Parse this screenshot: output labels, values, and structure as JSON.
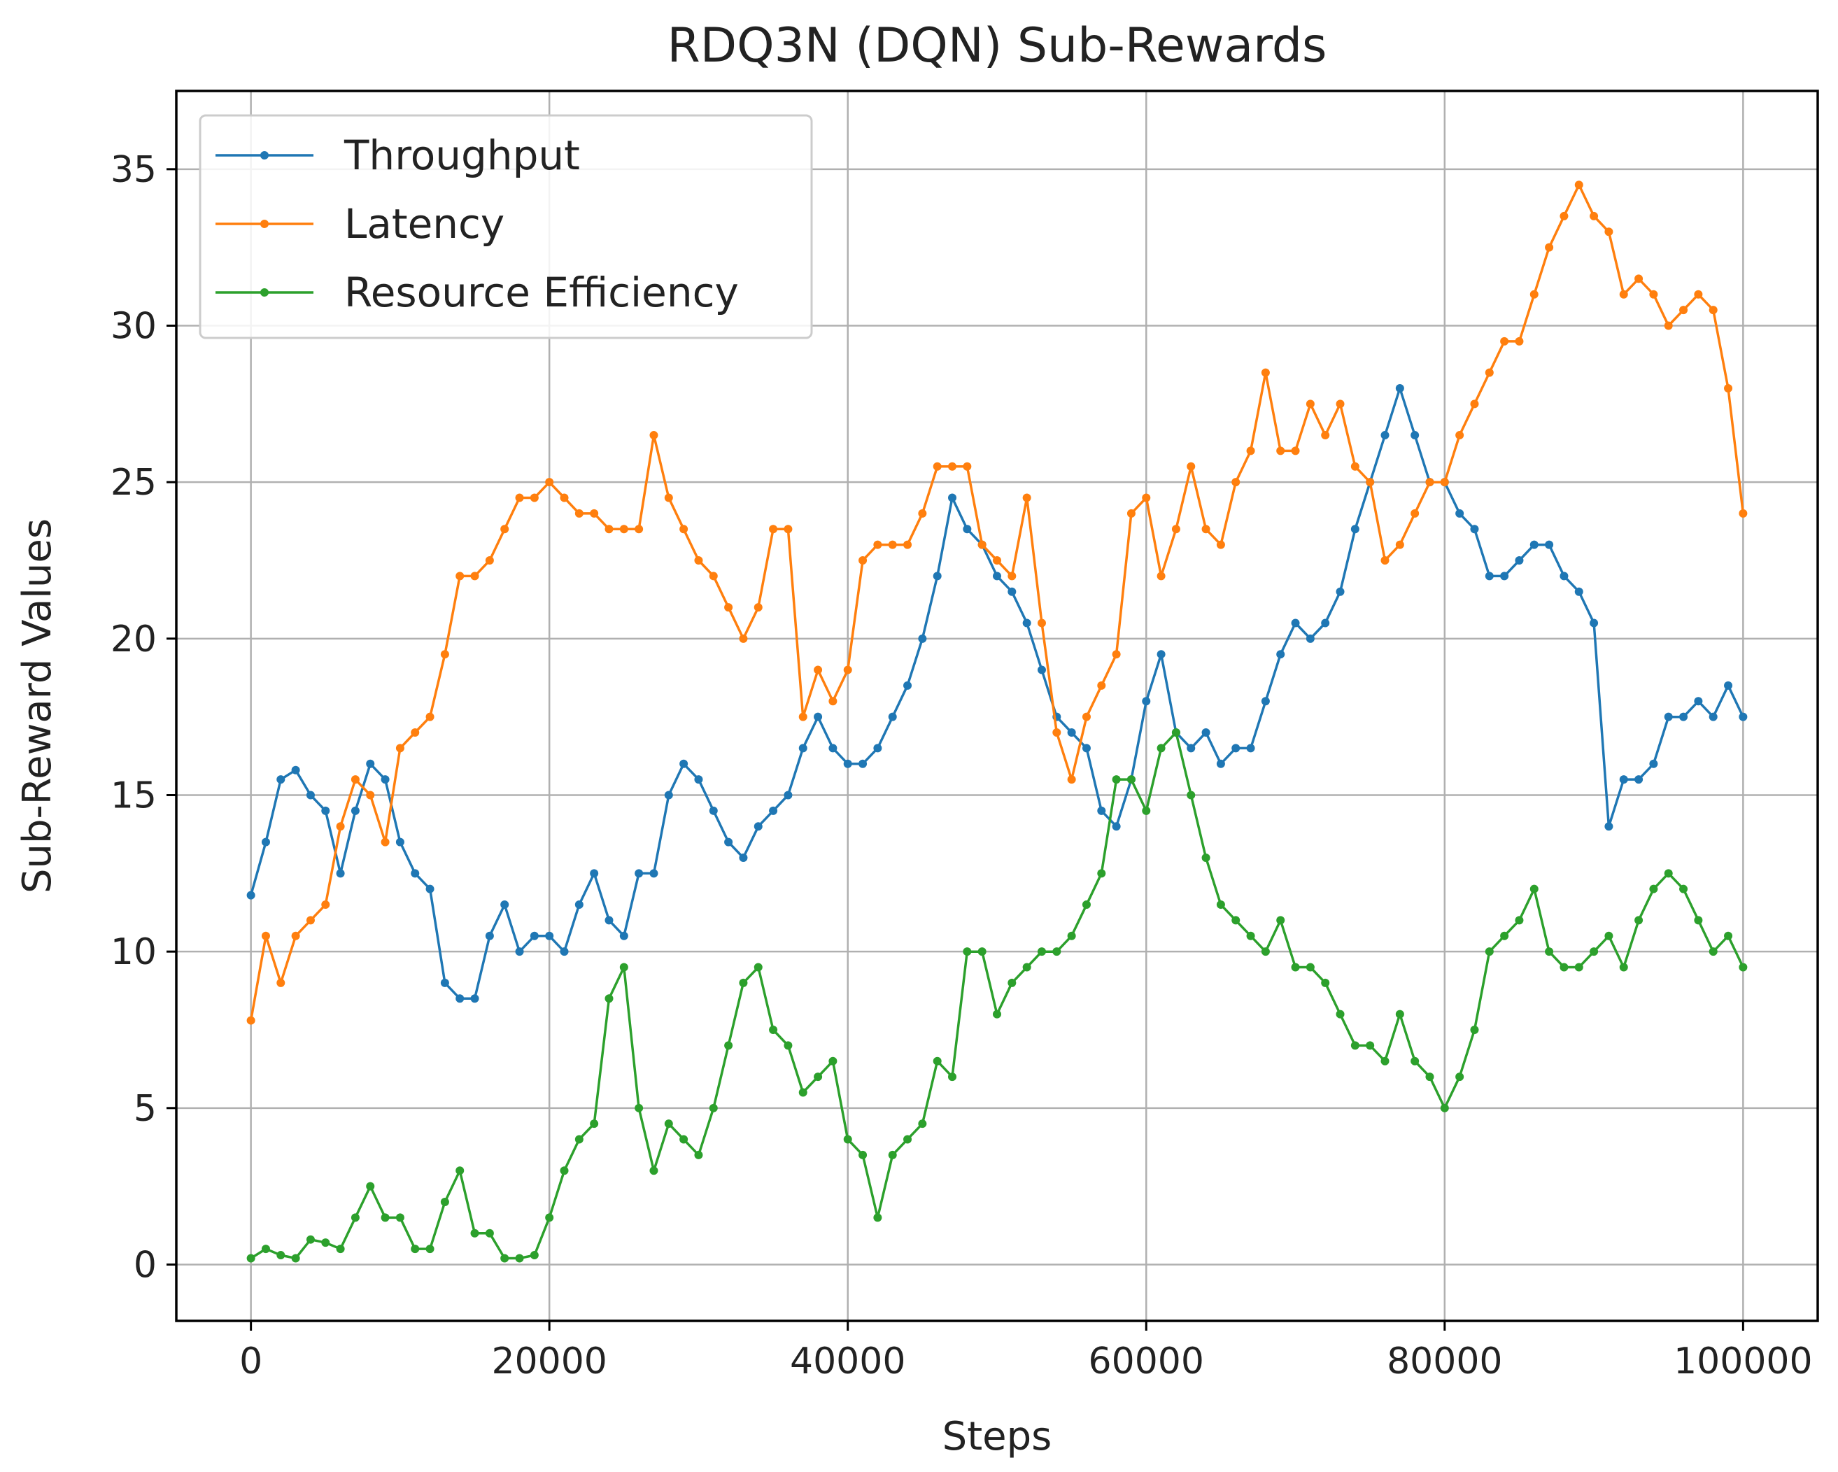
{
  "chart_data": {
    "type": "line",
    "title": "RDQ3N (DQN) Sub-Rewards",
    "xlabel": "Steps",
    "ylabel": "Sub-Reward Values",
    "xlim": [
      -5000,
      105000
    ],
    "ylim": [
      -1.8,
      37.5
    ],
    "xticks": [
      0,
      20000,
      40000,
      60000,
      80000,
      100000
    ],
    "xtick_labels": [
      "0",
      "20000",
      "40000",
      "60000",
      "80000",
      "100000"
    ],
    "yticks": [
      0,
      5,
      10,
      15,
      20,
      25,
      30,
      35
    ],
    "ytick_labels": [
      "0",
      "5",
      "10",
      "15",
      "20",
      "25",
      "30",
      "35"
    ],
    "grid": true,
    "legend_position": "top-left",
    "series": [
      {
        "name": "Throughput",
        "color": "#1f77b4",
        "x": [
          0,
          1000,
          2000,
          3000,
          4000,
          5000,
          6000,
          7000,
          8000,
          9000,
          10000,
          11000,
          12000,
          13000,
          14000,
          15000,
          16000,
          17000,
          18000,
          19000,
          20000,
          21000,
          22000,
          23000,
          24000,
          25000,
          26000,
          27000,
          28000,
          29000,
          30000,
          31000,
          32000,
          33000,
          34000,
          35000,
          36000,
          37000,
          38000,
          39000,
          40000,
          41000,
          42000,
          43000,
          44000,
          45000,
          46000,
          47000,
          48000,
          49000,
          50000,
          51000,
          52000,
          53000,
          54000,
          55000,
          56000,
          57000,
          58000,
          59000,
          60000,
          61000,
          62000,
          63000,
          64000,
          65000,
          66000,
          67000,
          68000,
          69000,
          70000,
          71000,
          72000,
          73000,
          74000,
          75000,
          76000,
          77000,
          78000,
          79000,
          80000,
          81000,
          82000,
          83000,
          84000,
          85000,
          86000,
          87000,
          88000,
          89000,
          90000,
          91000,
          92000,
          93000,
          94000,
          95000,
          96000,
          97000,
          98000,
          99000,
          100000
        ],
        "values": [
          11.8,
          13.5,
          15.5,
          15.8,
          15.0,
          14.5,
          12.5,
          14.5,
          16.0,
          15.5,
          13.5,
          12.5,
          12.0,
          9.0,
          8.5,
          8.5,
          10.5,
          11.5,
          10.0,
          10.5,
          10.5,
          10.0,
          11.5,
          12.5,
          11.0,
          10.5,
          12.5,
          12.5,
          15.0,
          16.0,
          15.5,
          14.5,
          13.5,
          13.0,
          14.0,
          14.5,
          15.0,
          16.5,
          17.5,
          16.5,
          16.0,
          16.0,
          16.5,
          17.5,
          18.5,
          20.0,
          22.0,
          24.5,
          23.5,
          23.0,
          22.0,
          21.5,
          20.5,
          19.0,
          17.5,
          17.0,
          16.5,
          14.5,
          14.0,
          15.5,
          18.0,
          19.5,
          17.0,
          16.5,
          17.0,
          16.0,
          16.5,
          16.5,
          18.0,
          19.5,
          20.5,
          20.0,
          20.5,
          21.5,
          23.5,
          25.0,
          26.5,
          28.0,
          26.5,
          25.0,
          25.0,
          24.0,
          23.5,
          22.0,
          22.0,
          22.5,
          23.0,
          23.0,
          22.0,
          21.5,
          20.5,
          14.0,
          15.5,
          15.5,
          16.0,
          17.5,
          17.5,
          18.0,
          17.5,
          18.5,
          17.5
        ]
      },
      {
        "name": "Latency",
        "color": "#ff7f0e",
        "x": [
          0,
          1000,
          2000,
          3000,
          4000,
          5000,
          6000,
          7000,
          8000,
          9000,
          10000,
          11000,
          12000,
          13000,
          14000,
          15000,
          16000,
          17000,
          18000,
          19000,
          20000,
          21000,
          22000,
          23000,
          24000,
          25000,
          26000,
          27000,
          28000,
          29000,
          30000,
          31000,
          32000,
          33000,
          34000,
          35000,
          36000,
          37000,
          38000,
          39000,
          40000,
          41000,
          42000,
          43000,
          44000,
          45000,
          46000,
          47000,
          48000,
          49000,
          50000,
          51000,
          52000,
          53000,
          54000,
          55000,
          56000,
          57000,
          58000,
          59000,
          60000,
          61000,
          62000,
          63000,
          64000,
          65000,
          66000,
          67000,
          68000,
          69000,
          70000,
          71000,
          72000,
          73000,
          74000,
          75000,
          76000,
          77000,
          78000,
          79000,
          80000,
          81000,
          82000,
          83000,
          84000,
          85000,
          86000,
          87000,
          88000,
          89000,
          90000,
          91000,
          92000,
          93000,
          94000,
          95000,
          96000,
          97000,
          98000,
          99000,
          100000
        ],
        "values": [
          7.8,
          10.5,
          9.0,
          10.5,
          11.0,
          11.5,
          14.0,
          15.5,
          15.0,
          13.5,
          16.5,
          17.0,
          17.5,
          19.5,
          22.0,
          22.0,
          22.5,
          23.5,
          24.5,
          24.5,
          25.0,
          24.5,
          24.0,
          24.0,
          23.5,
          23.5,
          23.5,
          26.5,
          24.5,
          23.5,
          22.5,
          22.0,
          21.0,
          20.0,
          21.0,
          23.5,
          23.5,
          17.5,
          19.0,
          18.0,
          19.0,
          22.5,
          23.0,
          23.0,
          23.0,
          24.0,
          25.5,
          25.5,
          25.5,
          23.0,
          22.5,
          22.0,
          24.5,
          20.5,
          17.0,
          15.5,
          17.5,
          18.5,
          19.5,
          24.0,
          24.5,
          22.0,
          23.5,
          25.5,
          23.5,
          23.0,
          25.0,
          26.0,
          28.5,
          26.0,
          26.0,
          27.5,
          26.5,
          27.5,
          25.5,
          25.0,
          22.5,
          23.0,
          24.0,
          25.0,
          25.0,
          26.5,
          27.5,
          28.5,
          29.5,
          29.5,
          31.0,
          32.5,
          33.5,
          34.5,
          33.5,
          33.0,
          31.0,
          31.5,
          31.0,
          30.0,
          30.5,
          31.0,
          30.5,
          28.0,
          24.0
        ]
      },
      {
        "name": "Resource Efficiency",
        "color": "#2ca02c",
        "x": [
          0,
          1000,
          2000,
          3000,
          4000,
          5000,
          6000,
          7000,
          8000,
          9000,
          10000,
          11000,
          12000,
          13000,
          14000,
          15000,
          16000,
          17000,
          18000,
          19000,
          20000,
          21000,
          22000,
          23000,
          24000,
          25000,
          26000,
          27000,
          28000,
          29000,
          30000,
          31000,
          32000,
          33000,
          34000,
          35000,
          36000,
          37000,
          38000,
          39000,
          40000,
          41000,
          42000,
          43000,
          44000,
          45000,
          46000,
          47000,
          48000,
          49000,
          50000,
          51000,
          52000,
          53000,
          54000,
          55000,
          56000,
          57000,
          58000,
          59000,
          60000,
          61000,
          62000,
          63000,
          64000,
          65000,
          66000,
          67000,
          68000,
          69000,
          70000,
          71000,
          72000,
          73000,
          74000,
          75000,
          76000,
          77000,
          78000,
          79000,
          80000,
          81000,
          82000,
          83000,
          84000,
          85000,
          86000,
          87000,
          88000,
          89000,
          90000,
          91000,
          92000,
          93000,
          94000,
          95000,
          96000,
          97000,
          98000,
          99000,
          100000
        ],
        "values": [
          0.2,
          0.5,
          0.3,
          0.2,
          0.8,
          0.7,
          0.5,
          1.5,
          2.5,
          1.5,
          1.5,
          0.5,
          0.5,
          2.0,
          3.0,
          1.0,
          1.0,
          0.2,
          0.2,
          0.3,
          1.5,
          3.0,
          4.0,
          4.5,
          8.5,
          9.5,
          5.0,
          3.0,
          4.5,
          4.0,
          3.5,
          5.0,
          7.0,
          9.0,
          9.5,
          7.5,
          7.0,
          5.5,
          6.0,
          6.5,
          4.0,
          3.5,
          1.5,
          3.5,
          4.0,
          4.5,
          6.5,
          6.0,
          10.0,
          10.0,
          8.0,
          9.0,
          9.5,
          10.0,
          10.0,
          10.5,
          11.5,
          12.5,
          15.5,
          15.5,
          14.5,
          16.5,
          17.0,
          15.0,
          13.0,
          11.5,
          11.0,
          10.5,
          10.0,
          11.0,
          9.5,
          9.5,
          9.0,
          8.0,
          7.0,
          7.0,
          6.5,
          8.0,
          6.5,
          6.0,
          5.0,
          6.0,
          7.5,
          10.0,
          10.5,
          11.0,
          12.0,
          10.0,
          9.5,
          9.5,
          10.0,
          10.5,
          9.5,
          11.0,
          12.0,
          12.5,
          12.0,
          11.0,
          10.0,
          10.5,
          9.5
        ]
      }
    ]
  }
}
